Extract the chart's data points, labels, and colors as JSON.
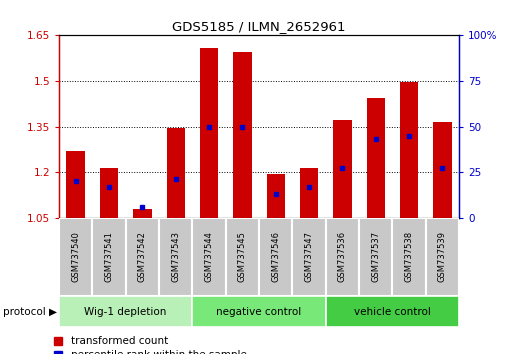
{
  "title": "GDS5185 / ILMN_2652961",
  "samples": [
    "GSM737540",
    "GSM737541",
    "GSM737542",
    "GSM737543",
    "GSM737544",
    "GSM737545",
    "GSM737546",
    "GSM737547",
    "GSM737536",
    "GSM737537",
    "GSM737538",
    "GSM737539"
  ],
  "transformed_count": [
    1.27,
    1.215,
    1.08,
    1.345,
    1.61,
    1.595,
    1.195,
    1.215,
    1.37,
    1.445,
    1.495,
    1.365
  ],
  "percentile_rank_pct": [
    20,
    17,
    6,
    21,
    50,
    50,
    13,
    17,
    27,
    43,
    45,
    27
  ],
  "ylim_left": [
    1.05,
    1.65
  ],
  "ylim_right": [
    0,
    100
  ],
  "yticks_left": [
    1.05,
    1.2,
    1.35,
    1.5,
    1.65
  ],
  "yticks_right": [
    0,
    25,
    50,
    75,
    100
  ],
  "groups": [
    {
      "label": "Wig-1 depletion",
      "start": 0,
      "end": 4,
      "color": "#b8f0b8"
    },
    {
      "label": "negative control",
      "start": 4,
      "end": 8,
      "color": "#78e878"
    },
    {
      "label": "vehicle control",
      "start": 8,
      "end": 12,
      "color": "#44cc44"
    }
  ],
  "bar_color": "#cc0000",
  "marker_color": "#0000cc",
  "bar_width": 0.55,
  "base_value": 1.05,
  "label_bg_color": "#c8c8c8",
  "label_sep_color": "#ffffff"
}
